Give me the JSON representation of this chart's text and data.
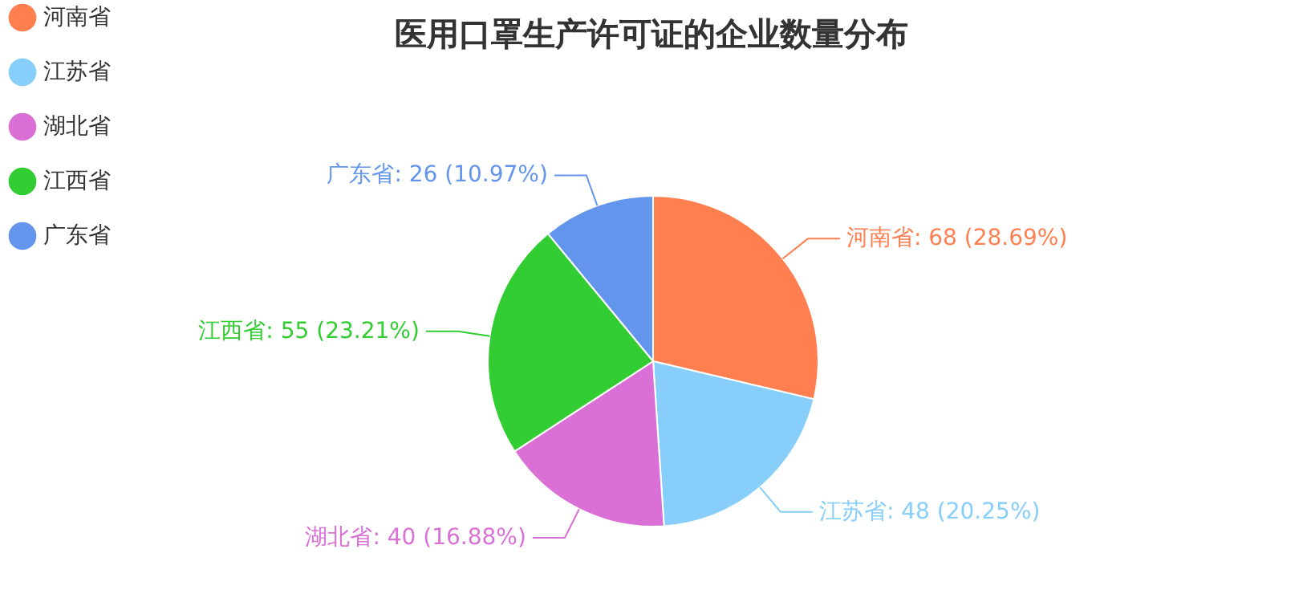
{
  "chart_data": {
    "type": "pie",
    "title": "医用口罩生产许可证的企业数量分布",
    "categories": [
      "河南省",
      "江苏省",
      "湖北省",
      "江西省",
      "广东省"
    ],
    "values": [
      68,
      48,
      40,
      55,
      26
    ],
    "colors": [
      "#ff7f50",
      "#87cefa",
      "#da70d6",
      "#32cd32",
      "#6495ed"
    ],
    "value_labels": [
      "河南省: 68 (28.69%)",
      "江苏省: 48 (20.25%)",
      "湖北省: 40 (16.88%)",
      "江西省: 55 (23.21%)",
      "广东省: 26 (10.97%)"
    ],
    "legend": "top left"
  }
}
